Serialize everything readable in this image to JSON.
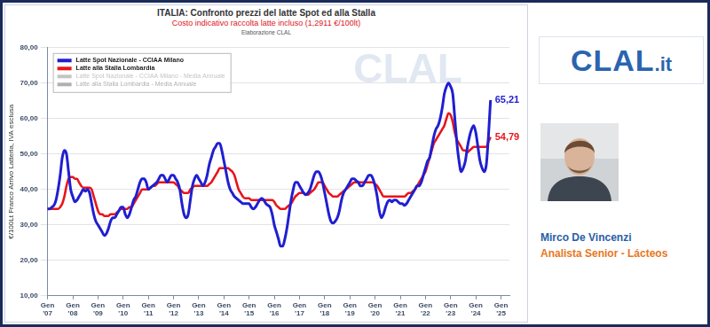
{
  "chart_data": {
    "type": "line",
    "title": "ITALIA: Confronto prezzi del latte Spot ed alla Stalla",
    "subtitle": "Costo indicativo raccolta latte incluso (1,2911 €/100lt)",
    "credit": "Elaborazione CLAL",
    "watermark": "CLAL",
    "y_label": "€/100Lt Franco Arrivo Latteria, IVA esclusa",
    "categories": [
      "Gen '07",
      null,
      null,
      null,
      null,
      null,
      null,
      null,
      null,
      null,
      null,
      null,
      "Gen '08",
      null,
      null,
      null,
      null,
      null,
      null,
      null,
      null,
      null,
      null,
      null,
      "Gen '09",
      null,
      null,
      null,
      null,
      null,
      null,
      null,
      null,
      null,
      null,
      null,
      "Gen '10",
      null,
      null,
      null,
      null,
      null,
      null,
      null,
      null,
      null,
      null,
      null,
      "Gen '11",
      null,
      null,
      null,
      null,
      null,
      null,
      null,
      null,
      null,
      null,
      null,
      "Gen '12",
      null,
      null,
      null,
      null,
      null,
      null,
      null,
      null,
      null,
      null,
      null,
      "Gen '13",
      null,
      null,
      null,
      null,
      null,
      null,
      null,
      null,
      null,
      null,
      null,
      "Gen '14",
      null,
      null,
      null,
      null,
      null,
      null,
      null,
      null,
      null,
      null,
      null,
      "Gen '15",
      null,
      null,
      null,
      null,
      null,
      null,
      null,
      null,
      null,
      null,
      null,
      "Gen '16",
      null,
      null,
      null,
      null,
      null,
      null,
      null,
      null,
      null,
      null,
      null,
      "Gen '17",
      null,
      null,
      null,
      null,
      null,
      null,
      null,
      null,
      null,
      null,
      null,
      "Gen '18",
      null,
      null,
      null,
      null,
      null,
      null,
      null,
      null,
      null,
      null,
      null,
      "Gen '19",
      null,
      null,
      null,
      null,
      null,
      null,
      null,
      null,
      null,
      null,
      null,
      "Gen '20",
      null,
      null,
      null,
      null,
      null,
      null,
      null,
      null,
      null,
      null,
      null,
      "Gen '21",
      null,
      null,
      null,
      null,
      null,
      null,
      null,
      null,
      null,
      null,
      null,
      "Gen '22",
      null,
      null,
      null,
      null,
      null,
      null,
      null,
      null,
      null,
      null,
      null,
      "Gen '23",
      null,
      null,
      null,
      null,
      null,
      null,
      null,
      null,
      null,
      null,
      null,
      "Gen '24",
      null,
      null,
      null,
      null,
      null,
      null,
      null,
      null,
      null,
      null,
      null,
      "Gen '25",
      null,
      null,
      null,
      null
    ],
    "series": [
      {
        "name": "Latte Spot Nazionale - CCIAA Milano",
        "color": "#1f1fd1",
        "values": [
          34.5,
          34.5,
          35,
          35.5,
          37,
          40,
          44,
          49,
          51,
          50,
          45,
          40,
          38,
          36.5,
          37,
          38,
          39,
          40,
          39.5,
          40,
          39,
          36,
          33,
          31,
          30,
          29,
          28,
          27,
          27.5,
          29,
          31,
          32,
          32,
          33,
          34,
          35,
          35,
          33,
          32,
          33,
          35,
          37,
          38,
          40,
          42,
          43,
          43,
          42,
          40,
          40.5,
          41,
          41.5,
          42,
          43,
          44,
          44,
          43,
          42,
          43,
          44,
          44,
          43,
          42,
          40,
          36,
          33,
          32,
          33,
          37,
          41,
          43,
          44,
          43,
          42,
          41,
          42,
          44,
          47,
          49,
          51,
          52,
          53,
          53,
          51,
          48,
          45,
          42,
          40,
          39,
          38,
          37.5,
          37,
          36.5,
          36,
          36,
          36,
          36,
          35,
          34.5,
          35,
          36,
          37,
          37.5,
          37,
          36,
          35.5,
          35,
          33,
          30,
          28,
          26,
          24,
          24,
          26,
          29,
          33,
          37,
          40,
          42,
          42,
          41,
          40,
          39,
          38.5,
          39,
          40,
          42,
          44,
          45,
          45,
          44,
          42,
          39,
          36,
          33,
          31,
          30.5,
          31,
          32,
          34,
          37,
          39,
          40,
          41,
          42,
          43,
          43,
          42.5,
          42,
          41,
          41,
          42,
          43,
          44,
          44,
          43,
          41,
          38,
          34,
          32,
          33,
          35,
          36.5,
          37,
          36.5,
          37,
          37,
          36.5,
          36,
          36,
          35.5,
          36,
          37,
          38,
          39,
          40,
          41,
          41,
          42,
          44,
          46,
          48,
          49,
          52,
          55,
          57,
          58,
          60,
          63,
          67,
          69,
          70,
          69,
          67,
          60,
          53,
          48,
          45,
          46,
          48,
          52,
          55,
          57,
          58,
          56,
          52,
          48,
          46,
          45,
          47,
          55,
          65.21,
          null,
          null,
          null,
          null,
          null,
          null,
          null,
          null,
          null
        ]
      },
      {
        "name": "Latte alla Stalla Lombardia",
        "color": "#e8141b",
        "values": [
          34.5,
          34.5,
          34.5,
          34.5,
          34.5,
          34.5,
          35,
          36,
          38,
          41,
          43,
          43.5,
          43.5,
          43,
          43,
          42,
          41,
          40.5,
          40.5,
          40.5,
          40.5,
          40,
          38,
          36,
          34,
          33,
          33,
          32.5,
          32.5,
          32.5,
          33,
          33,
          33,
          33.5,
          34,
          34.5,
          34.5,
          34.5,
          34.5,
          35,
          35,
          36,
          37,
          38,
          39,
          40,
          40,
          40,
          40,
          40.5,
          41,
          41,
          41.5,
          42,
          42,
          42,
          42,
          42,
          42,
          42,
          42,
          41.5,
          41,
          40,
          39.5,
          39,
          39,
          39,
          40,
          40.5,
          41,
          41,
          41,
          41,
          41,
          41,
          41,
          41.5,
          42,
          43,
          44,
          45,
          46,
          46,
          46,
          46,
          46,
          45.5,
          45,
          44,
          42,
          40,
          39,
          38,
          37.5,
          37.5,
          37.5,
          37,
          37,
          37,
          37,
          37,
          37,
          37,
          37,
          37,
          37,
          37,
          36.5,
          35.5,
          35,
          34.5,
          34.5,
          34.5,
          35,
          35.5,
          36,
          37,
          38,
          38.5,
          39,
          39,
          39,
          38.5,
          38.5,
          39,
          39.5,
          40,
          41,
          42,
          42,
          42,
          41,
          40,
          39,
          38.5,
          38,
          38,
          38,
          38.5,
          39,
          39.5,
          40,
          40.5,
          41,
          41.5,
          42,
          42,
          42,
          42,
          42,
          42,
          42,
          42,
          42,
          42,
          41.5,
          41,
          40,
          39,
          38,
          38,
          38,
          38,
          38,
          38,
          38,
          38,
          38,
          38,
          38,
          38.5,
          39,
          39,
          39.5,
          40,
          41,
          42,
          43,
          44,
          45,
          47,
          49,
          51,
          53,
          54,
          55,
          56,
          57,
          58,
          60,
          61.5,
          61,
          59,
          56,
          54,
          53,
          52,
          51,
          51,
          50.5,
          51,
          51.5,
          52,
          52,
          52,
          52,
          52,
          52,
          52,
          53.5,
          54.79,
          null,
          null,
          null,
          null,
          null,
          null,
          null,
          null,
          null
        ]
      },
      {
        "name": "Latte Spot Nazionale - CCIAA Milano - Media Annuale",
        "color": "#c4c4c4",
        "values": [
          null,
          null,
          null,
          null,
          null,
          null,
          null,
          null,
          null,
          null,
          null,
          null,
          null,
          null,
          null,
          null,
          null,
          null,
          null,
          null,
          null,
          null,
          null,
          null,
          null,
          null,
          null,
          null,
          null,
          null,
          null,
          null,
          null,
          null,
          null,
          null,
          null,
          null,
          null,
          null,
          null,
          null,
          null,
          null,
          null,
          null,
          null,
          null,
          null,
          null,
          null,
          null,
          null,
          null,
          null,
          null,
          null,
          null,
          null,
          null,
          null,
          null,
          null,
          null,
          null,
          null,
          null,
          null,
          null,
          null,
          null,
          null,
          null,
          null,
          null,
          null,
          null,
          null,
          null,
          null,
          null,
          null,
          null,
          null,
          null,
          null,
          null,
          null,
          null,
          null,
          null,
          null,
          null,
          null,
          null,
          null,
          null,
          null,
          null,
          null,
          null,
          null,
          null,
          null,
          null,
          null,
          null,
          null,
          null,
          null,
          null,
          null,
          null,
          null,
          null,
          null,
          null,
          null,
          null,
          null,
          null,
          null,
          null,
          null,
          null,
          null,
          null,
          null,
          null,
          null,
          null,
          null,
          null,
          null,
          null,
          null,
          null,
          null,
          null,
          null,
          null,
          null,
          null,
          null,
          null,
          null,
          null,
          null,
          null,
          null,
          null,
          null,
          null,
          null,
          null,
          null,
          null,
          null,
          null,
          null,
          null,
          null,
          null,
          null,
          null,
          null,
          null,
          null,
          null,
          null,
          null,
          null,
          null,
          null,
          null,
          null,
          null,
          null,
          null,
          null,
          null,
          null,
          null,
          null,
          null,
          null,
          null,
          null,
          null,
          null,
          null,
          null,
          null,
          null,
          null,
          null,
          null,
          null,
          null,
          null,
          null,
          null,
          null,
          null,
          null,
          null,
          null,
          null,
          null,
          null,
          null,
          null,
          null,
          null,
          null,
          null,
          null,
          null,
          null,
          null,
          null
        ]
      },
      {
        "name": "Latte alla Stalla Lombardia - Media Annuale",
        "color": "#b0b0b0",
        "values": [
          null,
          null,
          null,
          null,
          null,
          null,
          null,
          null,
          null,
          null,
          null,
          null,
          null,
          null,
          null,
          null,
          null,
          null,
          null,
          null,
          null,
          null,
          null,
          null,
          null,
          null,
          null,
          null,
          null,
          null,
          null,
          null,
          null,
          null,
          null,
          null,
          null,
          null,
          null,
          null,
          null,
          null,
          null,
          null,
          null,
          null,
          null,
          null,
          null,
          null,
          null,
          null,
          null,
          null,
          null,
          null,
          null,
          null,
          null,
          null,
          null,
          null,
          null,
          null,
          null,
          null,
          null,
          null,
          null,
          null,
          null,
          null,
          null,
          null,
          null,
          null,
          null,
          null,
          null,
          null,
          null,
          null,
          null,
          null,
          null,
          null,
          null,
          null,
          null,
          null,
          null,
          null,
          null,
          null,
          null,
          null,
          null,
          null,
          null,
          null,
          null,
          null,
          null,
          null,
          null,
          null,
          null,
          null,
          null,
          null,
          null,
          null,
          null,
          null,
          null,
          null,
          null,
          null,
          null,
          null,
          null,
          null,
          null,
          null,
          null,
          null,
          null,
          null,
          null,
          null,
          null,
          null,
          null,
          null,
          null,
          null,
          null,
          null,
          null,
          null,
          null,
          null,
          null,
          null,
          null,
          null,
          null,
          null,
          null,
          null,
          null,
          null,
          null,
          null,
          null,
          null,
          null,
          null,
          null,
          null,
          null,
          null,
          null,
          null,
          null,
          null,
          null,
          null,
          null,
          null,
          null,
          null,
          null,
          null,
          null,
          null,
          null,
          null,
          null,
          null,
          null,
          null,
          null,
          null,
          null,
          null,
          null,
          null,
          null,
          null,
          null,
          null,
          null,
          null,
          null,
          null,
          null,
          null,
          null,
          null,
          null,
          null,
          null,
          null,
          null,
          null,
          null,
          null,
          null,
          null,
          null,
          null,
          null,
          null,
          null,
          null,
          null,
          null,
          null,
          null,
          null
        ]
      }
    ],
    "ylim": [
      10,
      80
    ],
    "yticks": [
      {
        "value": 10,
        "label": "10,00"
      },
      {
        "value": 20,
        "label": "20,00"
      },
      {
        "value": 30,
        "label": "30,00"
      },
      {
        "value": 40,
        "label": "40,00"
      },
      {
        "value": 50,
        "label": "50,00"
      },
      {
        "value": 60,
        "label": "60,00"
      },
      {
        "value": 70,
        "label": "70,00"
      },
      {
        "value": 80,
        "label": "80,00"
      }
    ],
    "grid": true,
    "legend": "upper left",
    "annotations": [
      {
        "text": "65,21",
        "value": 65.21,
        "series": "Latte Spot Nazionale - CCIAA Milano"
      },
      {
        "text": "54,79",
        "value": 54.79,
        "series": "Latte alla Stalla Lombardia"
      }
    ]
  },
  "sidebar": {
    "logo": "CLAL",
    "logo_suffix": ".it",
    "name": "Mirco De Vincenzi",
    "role": "Analista Senior - Lácteos"
  }
}
